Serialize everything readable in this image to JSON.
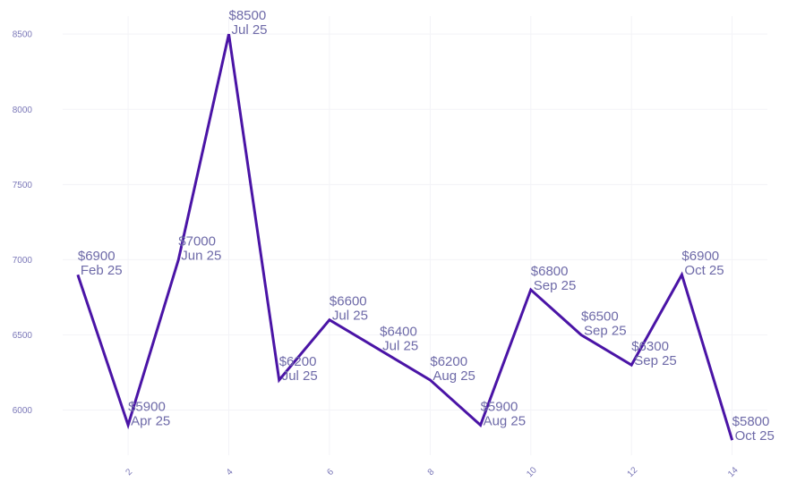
{
  "chart_data": {
    "type": "line",
    "x": [
      1,
      2,
      3,
      4,
      5,
      6,
      7,
      8,
      9,
      10,
      11,
      12,
      13,
      14
    ],
    "series": [
      {
        "values": [
          6900,
          5900,
          7000,
          8500,
          6200,
          6600,
          6400,
          6200,
          5900,
          6800,
          6500,
          6300,
          6900,
          5800
        ]
      }
    ],
    "data_labels": [
      {
        "value": "$6900",
        "date": "Feb 25"
      },
      {
        "value": "$5900",
        "date": "Apr 25"
      },
      {
        "value": "$7000",
        "date": "Jun 25"
      },
      {
        "value": "$8500",
        "date": "Jul 25"
      },
      {
        "value": "$6200",
        "date": "Jul 25"
      },
      {
        "value": "$6600",
        "date": "Jul 25"
      },
      {
        "value": "$6400",
        "date": "Jul 25"
      },
      {
        "value": "$6200",
        "date": "Aug 25"
      },
      {
        "value": "$5900",
        "date": "Aug 25"
      },
      {
        "value": "$6800",
        "date": "Sep 25"
      },
      {
        "value": "$6500",
        "date": "Sep 25"
      },
      {
        "value": "$6300",
        "date": "Sep 25"
      },
      {
        "value": "$6900",
        "date": "Oct 25"
      },
      {
        "value": "$5800",
        "date": "Oct 25"
      }
    ],
    "x_ticks": [
      2,
      4,
      6,
      8,
      10,
      12,
      14
    ],
    "y_ticks": [
      6000,
      6500,
      7000,
      7500,
      8000,
      8500
    ],
    "xlim": [
      0.7,
      14.7
    ],
    "ylim": [
      5700,
      8620
    ],
    "title": "",
    "xlabel": "",
    "ylabel": "",
    "grid": true,
    "legend": "none",
    "colors": {
      "line": "#4a14a6",
      "label": "#6e6aa8",
      "tick": "#7b78b8",
      "grid": "#f3f3f7"
    }
  }
}
